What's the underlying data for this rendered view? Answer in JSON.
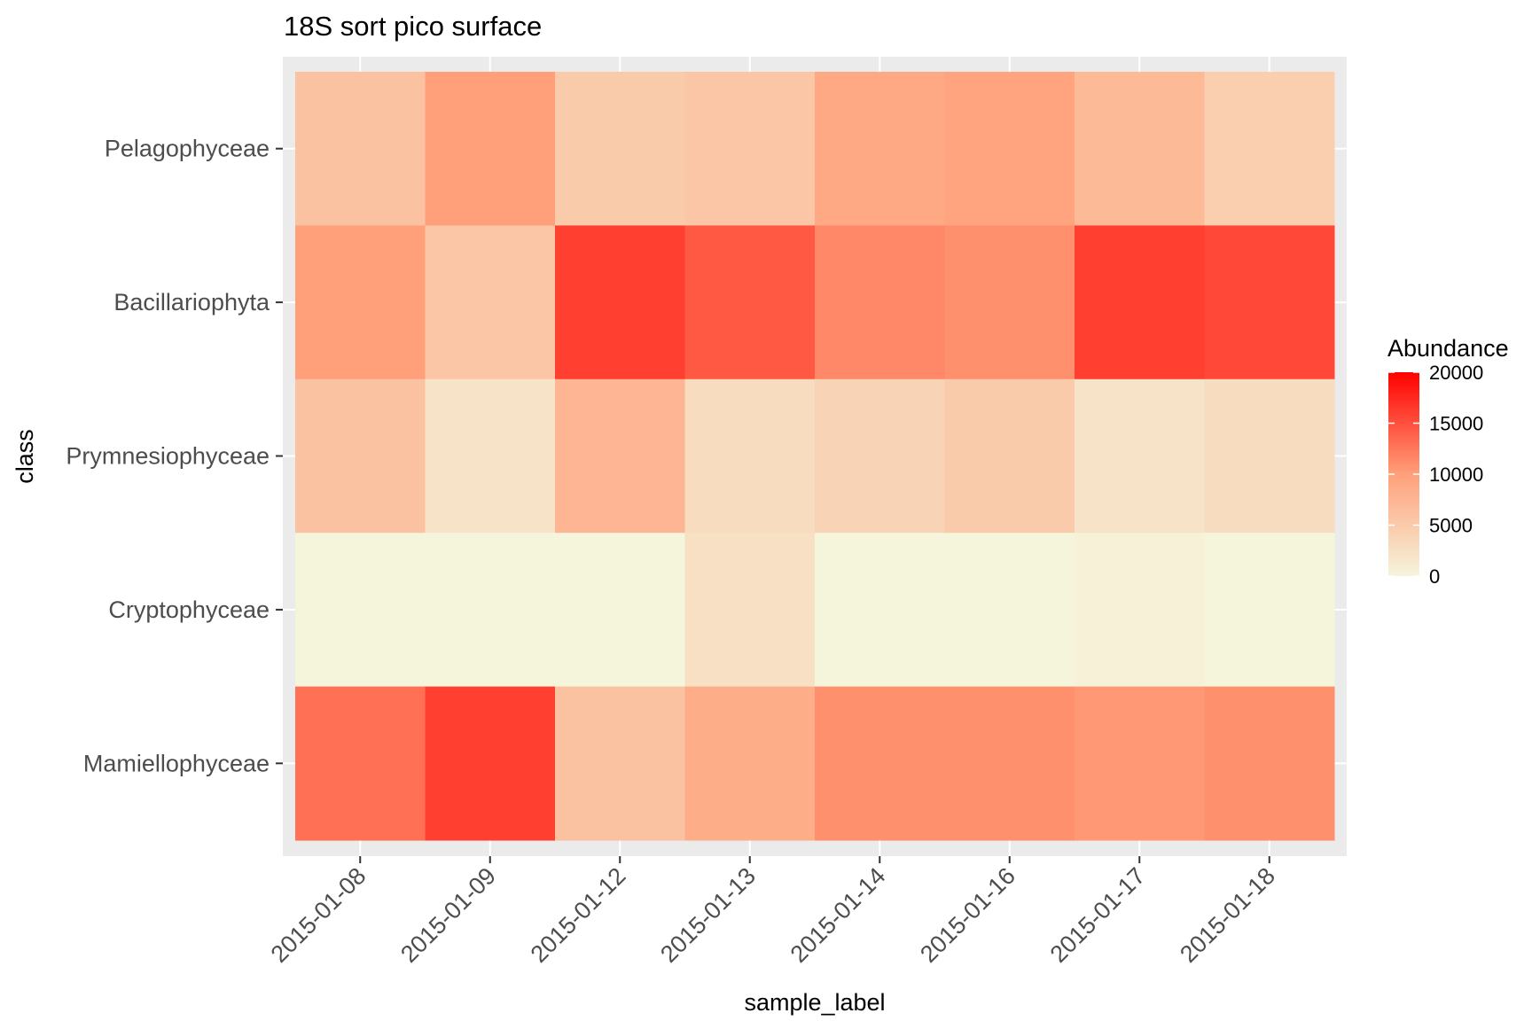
{
  "chart_data": {
    "type": "heatmap",
    "title": "18S sort pico surface",
    "xlabel": "sample_label",
    "ylabel": "class",
    "x": [
      "2015-01-08",
      "2015-01-09",
      "2015-01-12",
      "2015-01-13",
      "2015-01-14",
      "2015-01-16",
      "2015-01-17",
      "2015-01-18"
    ],
    "y": [
      "Pelagophyceae",
      "Bacillariophyta",
      "Prymnesiophyceae",
      "Cryptophyceae",
      "Mamiellophyceae"
    ],
    "values": [
      [
        6000,
        10000,
        5000,
        5500,
        9000,
        9500,
        7000,
        4500
      ],
      [
        10000,
        5500,
        16000,
        14500,
        11500,
        11000,
        16000,
        15500
      ],
      [
        6000,
        2000,
        7500,
        3000,
        4000,
        5000,
        2000,
        3000
      ],
      [
        0,
        0,
        0,
        2500,
        0,
        0,
        500,
        0
      ],
      [
        13000,
        16000,
        6000,
        8500,
        11000,
        11000,
        10500,
        11000
      ]
    ],
    "legend": {
      "title": "Abundance",
      "position": "right",
      "ticks": [
        0,
        5000,
        10000,
        15000,
        20000
      ],
      "tick_labels": [
        "0",
        "5000",
        "10000",
        "15000",
        "20000"
      ],
      "range": [
        0,
        20000
      ]
    },
    "color_scale": {
      "low": "#f5f5dc",
      "mid": "#ffa07a",
      "high": "#ff0000"
    },
    "panel_background": "#ebebeb",
    "grid": true
  }
}
